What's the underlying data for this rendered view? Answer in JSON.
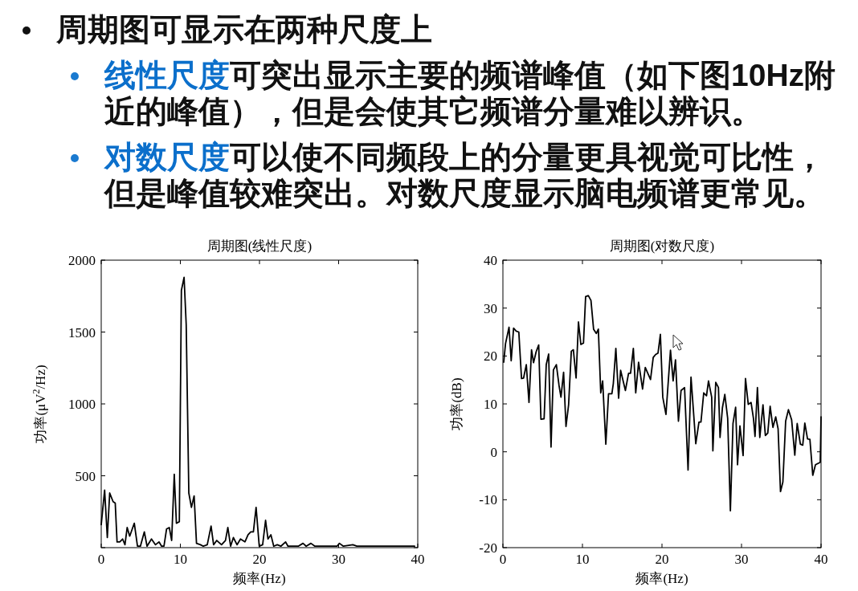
{
  "chart_data": [
    {
      "type": "other",
      "annotations": [
        "周期图可显示在两种尺度上",
        "线性尺度",
        "可突出显示主要的频谱峰值（如下图10Hz附近的峰值），但是会使其它频谱分量难以辨识。",
        "对数尺度",
        "可以使不同频段上的分量更具视觉可比性，但是峰值较难突出。对数尺度显示脑电频谱更常见。"
      ]
    },
    {
      "type": "line",
      "title": "周期图(线性尺度)",
      "xlabel": "频率(Hz)",
      "ylabel": "功率(μV$^{2}$/Hz)",
      "color": "#000000",
      "x": [
        0,
        0.43,
        0.77,
        1.07,
        1.5,
        1.77,
        2.0,
        2.34,
        2.7,
        3.0,
        3.28,
        3.6,
        4.18,
        4.58,
        4.95,
        5.45,
        5.79,
        6.35,
        6.86,
        7.3,
        7.63,
        7.93,
        8.26,
        8.6,
        8.9,
        9.23,
        9.5,
        9.87,
        10.13,
        10.47,
        10.74,
        11.07,
        11.4,
        11.74,
        12.04,
        12.54,
        12.9,
        13.4,
        13.88,
        14.2,
        14.6,
        15.2,
        15.7,
        16.0,
        16.35,
        16.7,
        17.16,
        17.6,
        18.16,
        18.56,
        18.9,
        19.23,
        19.57,
        19.97,
        20.4,
        20.77,
        21.07,
        21.44,
        21.8,
        22.24,
        22.7,
        23.3,
        23.6,
        24.9,
        25.5,
        25.9,
        26.5,
        27.0,
        27.7,
        28.6,
        29.8,
        30.1,
        30.6,
        31.8,
        32.3,
        34.3,
        35.6,
        37.6,
        39.0,
        39.6
      ],
      "values": [
        160,
        400,
        70,
        380,
        320,
        310,
        40,
        40,
        60,
        20,
        140,
        80,
        170,
        10,
        10,
        110,
        10,
        60,
        20,
        40,
        10,
        10,
        130,
        140,
        50,
        510,
        170,
        180,
        1790,
        1880,
        1550,
        380,
        280,
        360,
        30,
        20,
        10,
        20,
        150,
        20,
        50,
        20,
        50,
        140,
        10,
        70,
        20,
        60,
        40,
        90,
        110,
        110,
        280,
        10,
        20,
        190,
        60,
        90,
        10,
        20,
        10,
        40,
        10,
        10,
        30,
        10,
        30,
        10,
        10,
        10,
        10,
        30,
        10,
        20,
        10,
        10,
        10,
        10,
        10,
        10
      ],
      "xlim": [
        0,
        40
      ],
      "xticks": [
        0,
        10,
        20,
        30,
        40
      ],
      "ylim": [
        0,
        2000
      ],
      "yticks": [
        {
          "value": 0,
          "label": null
        },
        500,
        1000,
        1500,
        2000
      ]
    },
    {
      "type": "line",
      "title": "周期图(对数尺度)",
      "xlabel": "频率(Hz)",
      "ylabel": "功率(dB)",
      "color": "#000000",
      "x": [
        0.1,
        0.33,
        0.77,
        1.04,
        1.34,
        1.67,
        2.0,
        2.34,
        2.6,
        2.94,
        3.28,
        3.6,
        3.85,
        4.18,
        4.5,
        4.78,
        5.18,
        5.45,
        5.75,
        6.05,
        6.35,
        6.72,
        7.05,
        7.3,
        7.63,
        7.93,
        8.26,
        8.6,
        8.86,
        9.2,
        9.5,
        9.8,
        10.13,
        10.4,
        10.74,
        11.07,
        11.4,
        11.74,
        12.0,
        12.3,
        12.54,
        12.94,
        13.28,
        13.7,
        13.88,
        14.2,
        14.55,
        14.8,
        15.4,
        15.8,
        16.05,
        16.4,
        16.7,
        17.06,
        17.56,
        17.9,
        18.56,
        18.9,
        19.2,
        19.5,
        19.8,
        20.1,
        20.5,
        21.07,
        21.4,
        21.7,
        22.07,
        22.4,
        22.84,
        23.28,
        23.65,
        24.25,
        24.65,
        24.9,
        25.25,
        25.6,
        25.85,
        26.25,
        26.4,
        26.76,
        27.1,
        27.3,
        27.6,
        27.9,
        28.26,
        28.6,
        28.93,
        29.26,
        29.5,
        29.8,
        30.2,
        30.5,
        30.85,
        31.2,
        31.5,
        31.7,
        32.0,
        32.3,
        32.7,
        33.0,
        33.3,
        33.6,
        33.95,
        34.3,
        34.6,
        34.9,
        35.2,
        35.55,
        35.9,
        36.3,
        36.7,
        37.0,
        37.4,
        37.7,
        37.96,
        38.3,
        38.6,
        38.96,
        39.3,
        39.9,
        40
      ],
      "values": [
        18.7,
        22.6,
        26,
        19,
        25.8,
        25.2,
        25,
        15.3,
        15.4,
        18.2,
        10.3,
        21.3,
        18.6,
        20.9,
        22.3,
        6.8,
        6.9,
        18.2,
        20.4,
        1,
        17.1,
        18.2,
        13.9,
        11.4,
        16.6,
        5.3,
        9.8,
        21,
        21.3,
        15.4,
        27.1,
        22.4,
        22.7,
        32.4,
        32.6,
        31.6,
        25.6,
        24.7,
        25.6,
        12.3,
        14.8,
        1.6,
        12.1,
        12.1,
        14.2,
        21.6,
        11.2,
        17,
        12.8,
        16.4,
        16.4,
        21.6,
        12.3,
        18.7,
        13.1,
        17.6,
        15.1,
        19.7,
        20.3,
        20.6,
        24.5,
        11.4,
        7.8,
        21.2,
        14.8,
        19.2,
        6.4,
        12.8,
        13.4,
        -3.8,
        15.6,
        1.7,
        6.2,
        6.2,
        12.3,
        11.7,
        14.8,
        11.4,
        0.2,
        14.5,
        13.4,
        3,
        9.2,
        12,
        7,
        -12.3,
        5.9,
        9.3,
        -2.7,
        5.4,
        -0.8,
        15.3,
        9.9,
        10.3,
        7,
        3.2,
        13.4,
        3,
        9.8,
        3.4,
        3.9,
        9.5,
        5.1,
        7.3,
        4.8,
        -8.3,
        -6.3,
        6.4,
        8.8,
        6.7,
        -0.7,
        5.9,
        1.6,
        1.4,
        6,
        2.7,
        2.6,
        -4.9,
        -2.7,
        -2.2,
        7.3
      ],
      "xlim": [
        0,
        40
      ],
      "xticks": [
        0,
        10,
        20,
        30,
        40
      ],
      "ylim": [
        -20,
        40
      ],
      "yticks": [
        -20,
        -10,
        0,
        10,
        20,
        30,
        40
      ]
    }
  ]
}
